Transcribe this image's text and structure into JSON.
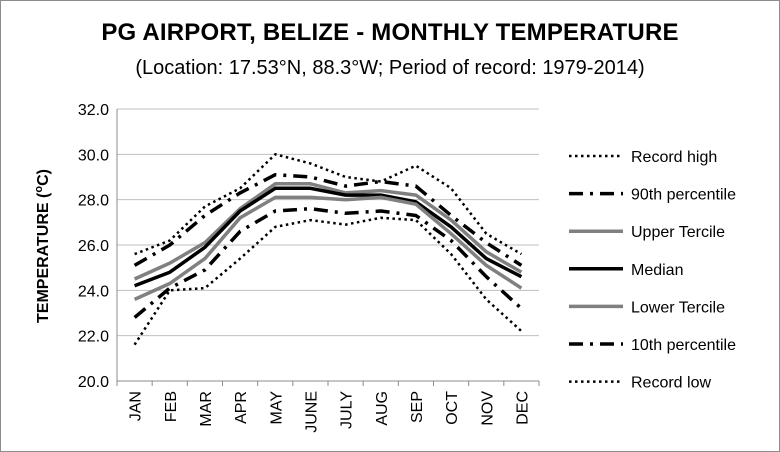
{
  "chart_data": {
    "type": "line",
    "title": "PG AIRPORT, BELIZE - MONTHLY TEMPERATURE",
    "subtitle": "(Location: 17.53°N, 88.3°W; Period of record: 1979-2014)",
    "ylabel_main": "TEMPERATURE (",
    "ylabel_sup": "o",
    "ylabel_end": "C)",
    "xlabel": "",
    "ylim": [
      20,
      32
    ],
    "yticks": [
      "20.0",
      "22.0",
      "24.0",
      "26.0",
      "28.0",
      "30.0",
      "32.0"
    ],
    "grid": true,
    "legend_position": "right",
    "categories": [
      "JAN",
      "FEB",
      "MAR",
      "APR",
      "MAY",
      "JUNE",
      "JULY",
      "AUG",
      "SEP",
      "OCT",
      "NOV",
      "DEC"
    ],
    "series": [
      {
        "name": "Record high",
        "style": "dotted",
        "color": "#000000",
        "values": [
          25.6,
          26.2,
          27.7,
          28.5,
          30.0,
          29.6,
          29.0,
          28.8,
          29.5,
          28.5,
          26.5,
          25.6
        ]
      },
      {
        "name": "90th percentile",
        "style": "dashdot",
        "color": "#000000",
        "values": [
          25.1,
          26.0,
          27.3,
          28.3,
          29.1,
          29.0,
          28.6,
          28.8,
          28.6,
          27.3,
          26.1,
          25.1
        ]
      },
      {
        "name": "Upper Tercile",
        "style": "solid",
        "color": "#808080",
        "values": [
          24.5,
          25.2,
          26.1,
          27.6,
          28.7,
          28.7,
          28.3,
          28.4,
          28.2,
          27.1,
          25.7,
          24.8
        ]
      },
      {
        "name": "Median",
        "style": "solid",
        "color": "#000000",
        "values": [
          24.2,
          24.8,
          25.9,
          27.5,
          28.5,
          28.5,
          28.2,
          28.2,
          27.9,
          26.8,
          25.4,
          24.6
        ]
      },
      {
        "name": "Lower Tercile",
        "style": "solid",
        "color": "#808080",
        "values": [
          23.6,
          24.3,
          25.4,
          27.2,
          28.1,
          28.1,
          28.0,
          28.1,
          27.8,
          26.5,
          25.1,
          24.1
        ]
      },
      {
        "name": "10th percentile",
        "style": "dashdot",
        "color": "#000000",
        "values": [
          22.8,
          24.1,
          24.9,
          26.6,
          27.5,
          27.6,
          27.4,
          27.5,
          27.3,
          26.2,
          24.6,
          23.2
        ]
      },
      {
        "name": "Record low",
        "style": "dotted",
        "color": "#000000",
        "values": [
          21.6,
          24.0,
          24.1,
          25.4,
          26.8,
          27.1,
          26.9,
          27.2,
          27.1,
          25.6,
          23.6,
          22.2
        ]
      }
    ]
  }
}
